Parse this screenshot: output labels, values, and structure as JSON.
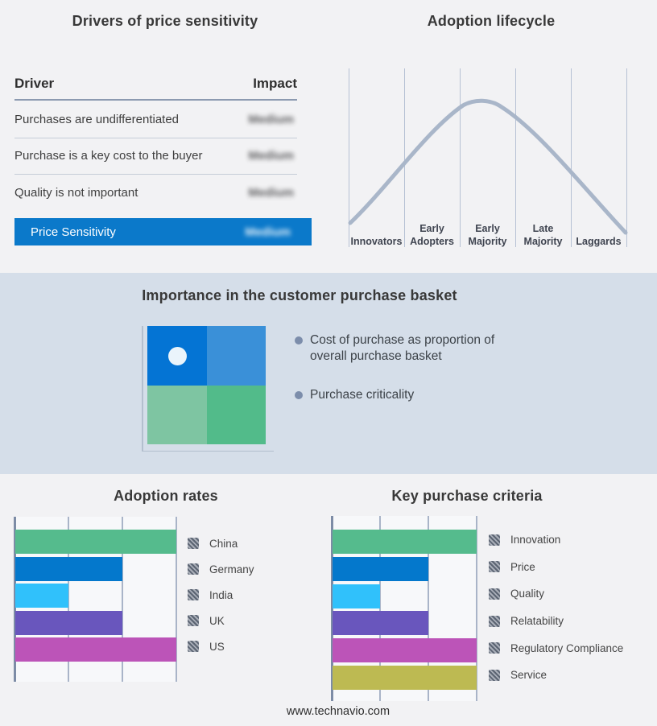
{
  "page": {
    "footer": "www.technavio.com",
    "bg_color": "#f2f2f4",
    "band_bg_color": "#d5dee9",
    "accent_blue": "#0b79ca"
  },
  "drivers": {
    "title": "Drivers of price sensitivity",
    "header": {
      "driver": "Driver",
      "impact": "Impact"
    },
    "rows": [
      {
        "driver": "Purchases are undifferentiated",
        "impact": "Medium"
      },
      {
        "driver": "Purchase is a key cost to the buyer",
        "impact": "Medium"
      },
      {
        "driver": "Quality is not important",
        "impact": "Medium"
      }
    ],
    "summary": {
      "driver": "Price Sensitivity",
      "impact": "Medium"
    },
    "impact_values_blurred": true
  },
  "lifecycle": {
    "title": "Adoption lifecycle",
    "stages": [
      [
        "Innovators"
      ],
      [
        "Early",
        "Adopters"
      ],
      [
        "Early",
        "Majority"
      ],
      [
        "Late",
        "Majority"
      ],
      [
        "Laggards"
      ]
    ],
    "curve_color": "#a9b6c9",
    "grid_color": "#b6c1d4"
  },
  "basket": {
    "title": "Importance in the customer purchase basket",
    "bullets": [
      "Cost of purchase as proportion of overall purchase basket",
      "Purchase criticality"
    ],
    "quadrant_colors": [
      "#0474d4",
      "#3a90d8",
      "#7ec5a2",
      "#52bb8a"
    ],
    "dot_color": "#eaf4fb",
    "bullet_dot_color": "#7c8dab"
  },
  "chart_data": [
    {
      "id": "adoption_rates",
      "type": "bar",
      "orientation": "horizontal",
      "title": "Adoption rates",
      "categories": [
        "China",
        "Germany",
        "India",
        "UK",
        "US"
      ],
      "values": [
        100,
        66.7,
        33.3,
        66.7,
        100
      ],
      "value_note": "percent of axis max; no numeric tick labels shown",
      "colors": [
        "#55bb8d",
        "#0478cc",
        "#30c1fb",
        "#6956bd",
        "#bc54b8"
      ],
      "xlim": [
        0,
        100
      ],
      "gridlines_pct": [
        33.3,
        66.7,
        100
      ],
      "legend_position": "right",
      "legend_style": "hatched-gray-swatches"
    },
    {
      "id": "key_purchase_criteria",
      "type": "bar",
      "orientation": "horizontal",
      "title": "Key purchase criteria",
      "categories": [
        "Innovation",
        "Price",
        "Quality",
        "Relatability",
        "Regulatory Compliance",
        "Service"
      ],
      "values": [
        100,
        66.7,
        33.3,
        66.7,
        100,
        100
      ],
      "value_note": "percent of axis max; no numeric tick labels shown",
      "colors": [
        "#55bb8d",
        "#0478cc",
        "#30c1fb",
        "#6956bd",
        "#bc54b8",
        "#bdba52"
      ],
      "xlim": [
        0,
        100
      ],
      "gridlines_pct": [
        33.3,
        66.7,
        100
      ],
      "legend_position": "right",
      "legend_style": "hatched-gray-swatches"
    },
    {
      "id": "adoption_lifecycle_curve",
      "type": "line",
      "title": "Adoption lifecycle",
      "x_stages": [
        "Innovators",
        "Early Adopters",
        "Early Majority",
        "Late Majority",
        "Laggards"
      ],
      "shape": "bell-curve",
      "points_norm": [
        [
          0.0,
          0.13
        ],
        [
          0.2,
          0.47
        ],
        [
          0.4,
          0.84
        ],
        [
          0.48,
          0.97
        ],
        [
          0.55,
          0.95
        ],
        [
          0.7,
          0.64
        ],
        [
          0.85,
          0.33
        ],
        [
          1.0,
          0.08
        ]
      ]
    }
  ]
}
